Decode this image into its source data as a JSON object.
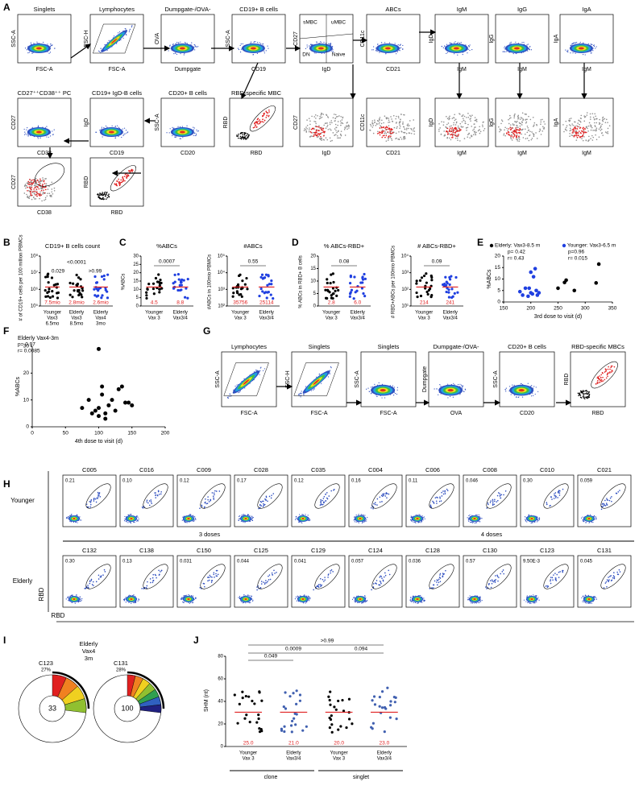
{
  "panel_a": {
    "label": "A",
    "plots": [
      {
        "title": "Singlets",
        "y": "SSC-A",
        "x": "FSC-A"
      },
      {
        "title": "Lymphocytes",
        "y": "FSC-H",
        "x": "FSC-A"
      },
      {
        "title": "Dumpgate-/OVA-",
        "y": "OVA",
        "x": "Dumpgate"
      },
      {
        "title": "CD19+ B cells",
        "y": "SSC-A",
        "x": "CD19"
      },
      {
        "y": "CD27",
        "x": "IgD"
      },
      {
        "title": "ABCs",
        "y": "CD11c",
        "x": "CD21"
      },
      {
        "title": "IgM",
        "y": "IgD",
        "x": "IgM"
      },
      {
        "title": "IgG",
        "y": "IgG",
        "x": "IgM"
      },
      {
        "title": "IgA",
        "y": "IgA",
        "x": "IgM"
      },
      {
        "title": "CD27⁺⁺CD38⁺⁺ PC",
        "y": "CD27",
        "x": "CD38"
      },
      {
        "title": "CD19+ IgD-B cells",
        "y": "IgD",
        "x": "CD19"
      },
      {
        "title": "CD20+ B cells",
        "y": "SSC-A",
        "x": "CD20"
      },
      {
        "title": "RBD-specific MBC",
        "y": "RBD",
        "x": "RBD"
      },
      {
        "y": "CD27",
        "x": "IgD"
      },
      {
        "y": "CD11c",
        "x": "CD21"
      },
      {
        "y": "IgD",
        "x": "IgM"
      },
      {
        "y": "IgG",
        "x": "IgM"
      },
      {
        "y": "IgA",
        "x": "IgM"
      },
      {
        "y": "CD27",
        "x": "CD38"
      },
      {
        "y": "RBD",
        "x": "RBD"
      }
    ],
    "gate_labels": [
      "sMBC",
      "uMBC",
      "DN",
      "Naive"
    ]
  },
  "panel_b": {
    "label": "B",
    "title": "CD19+ B cells count",
    "ylabel": "# of CD19+ cells per 100 million PBMCs",
    "yticks": [
      "10⁵",
      "10⁶",
      "10⁷",
      "10⁸"
    ],
    "pvalues": [
      "<0.0001",
      "0.029",
      ">0.99"
    ],
    "medians": [
      "7.5mio",
      "2.8mio",
      "2.6mio"
    ],
    "categories": [
      [
        "Younger",
        "Vax3",
        "6.5mo"
      ],
      [
        "Elderly",
        "Vax3",
        "8.5mo"
      ],
      [
        "Elderly",
        "Vax4",
        "3mo"
      ]
    ]
  },
  "panel_c": {
    "label": "C",
    "plots": [
      {
        "title": "%ABCs",
        "ylabel": "%ABCs",
        "yticks": [
          "0",
          "5",
          "10",
          "15",
          "20",
          "25",
          "30"
        ],
        "pvalue": "0.0007",
        "medians": [
          "4.5",
          "8.8"
        ]
      },
      {
        "title": "#ABCs",
        "ylabel": "#ABCs in 100mio PBMCs",
        "yticks": [
          "10²",
          "10³",
          "10⁴",
          "10⁵"
        ],
        "pvalue": "0.55",
        "medians": [
          "35756",
          "25114"
        ]
      }
    ],
    "categories": [
      [
        "Younger",
        "Vax 3"
      ],
      [
        "Elderly",
        "Vax3/4"
      ]
    ]
  },
  "panel_d": {
    "label": "D",
    "plots": [
      {
        "title": "% ABCs-RBD+",
        "ylabel": "% ABCs in RBD+ B cells",
        "yticks": [
          "0",
          "5",
          "10",
          "15",
          "20"
        ],
        "pvalue": "0.08",
        "medians": [
          "2.8",
          "6.0"
        ]
      },
      {
        "title": "# ABCs-RBD+",
        "ylabel": "# RBD+ABCs per 100mio PBMCs",
        "yticks": [
          "10¹",
          "10²",
          "10³",
          "10⁴"
        ],
        "pvalue": "0.09",
        "medians": [
          "214",
          "241"
        ]
      }
    ],
    "categories": [
      [
        "Younger",
        "Vax 3"
      ],
      [
        "Elderly",
        "Vax3/4"
      ]
    ]
  },
  "panel_e": {
    "label": "E",
    "ylabel": "%ABCs",
    "xlabel": "3rd dose to visit (d)",
    "xlim": [
      150,
      350
    ],
    "xticks": [
      150,
      200,
      250,
      300,
      350
    ],
    "ylim": [
      0,
      20
    ],
    "yticks": [
      0,
      5,
      10,
      15,
      20
    ],
    "series": [
      {
        "name": "Elderly: Vax3-8.5 m",
        "color": "#000000",
        "stats": [
          "p= 0.42",
          "r= 0.43"
        ],
        "x": [
          250,
          262,
          265,
          280,
          320,
          325
        ],
        "values": [
          6,
          8.5,
          9.5,
          5,
          8.3,
          16.5
        ]
      },
      {
        "name": "Younger: Vax3-6.5 m",
        "color": "#2040e0",
        "stats": [
          "p=0.96",
          "r= 0.015"
        ],
        "x": [
          180,
          185,
          190,
          195,
          197,
          200,
          203,
          205,
          208,
          210,
          212,
          215,
          200
        ],
        "values": [
          4.5,
          3,
          6,
          2.5,
          6,
          4,
          3.5,
          11,
          14.5,
          5,
          3,
          4,
          13
        ]
      }
    ]
  },
  "panel_f": {
    "label": "F",
    "title": "Elderly Vax4-3m",
    "stats": [
      "p= 0.97",
      "r= 0.0085"
    ],
    "ylabel": "%ABCs",
    "xlabel": "4th dose to visit (d)",
    "xlim": [
      0,
      200
    ],
    "xticks": [
      0,
      50,
      100,
      150,
      200
    ],
    "ylim": [
      0,
      30
    ],
    "yticks": [
      0,
      10,
      20,
      30
    ],
    "x": [
      75,
      85,
      90,
      95,
      100,
      100,
      105,
      110,
      115,
      110,
      120,
      125,
      130,
      135,
      140,
      145,
      150,
      100,
      105
    ],
    "values": [
      7,
      10,
      5,
      6,
      29,
      4,
      12,
      5,
      8,
      3,
      10,
      6,
      14,
      15,
      9,
      9,
      8,
      7,
      15
    ]
  },
  "panel_g": {
    "label": "G",
    "plots": [
      {
        "title": "Lymphocytes",
        "y": "SSC-A",
        "x": "FSC-A"
      },
      {
        "title": "Singlets",
        "y": "FSC-H",
        "x": "FSC-A"
      },
      {
        "title": "Singlets",
        "y": "SSC-A",
        "x": "FSC-A"
      },
      {
        "title": "Dumpgate-/OVA-",
        "y": "Dumpgate",
        "x": "OVA"
      },
      {
        "title": "CD20+ B cells",
        "y": "SSC-A",
        "x": "CD20"
      },
      {
        "title": "RBD-specific MBCs",
        "y": "RBD",
        "x": "RBD"
      }
    ]
  },
  "panel_h": {
    "label": "H",
    "rows": [
      "Younger",
      "Elderly"
    ],
    "doses": [
      "3 doses",
      "4 doses"
    ],
    "ylabel": "RBD",
    "xlabel": "RBD",
    "younger": [
      {
        "name": "C005",
        "value": "0.21"
      },
      {
        "name": "C016",
        "value": "0.10"
      },
      {
        "name": "C009",
        "value": "0.12"
      },
      {
        "name": "C028",
        "value": "0.17"
      },
      {
        "name": "C035",
        "value": "0.12"
      },
      {
        "name": "C004",
        "value": "0.16"
      },
      {
        "name": "C006",
        "value": "0.11"
      },
      {
        "name": "C008",
        "value": "0.046"
      },
      {
        "name": "C010",
        "value": "0.30"
      },
      {
        "name": "C021",
        "value": "0.059"
      }
    ],
    "elderly": [
      {
        "name": "C132",
        "value": "0.30"
      },
      {
        "name": "C138",
        "value": "0.13"
      },
      {
        "name": "C150",
        "value": "0.031"
      },
      {
        "name": "C125",
        "value": "0.044"
      },
      {
        "name": "C129",
        "value": "0.041"
      },
      {
        "name": "C124",
        "value": "0.057"
      },
      {
        "name": "C128",
        "value": "0.036"
      },
      {
        "name": "C130",
        "value": "0.57"
      },
      {
        "name": "C123",
        "value": "9.50E-3"
      },
      {
        "name": "C131",
        "value": "0.045"
      }
    ]
  },
  "panel_i": {
    "label": "I",
    "group": [
      "Elderly",
      "Vax4",
      "3m"
    ],
    "pies": [
      {
        "name": "C123",
        "percent": "27%",
        "center": "33"
      },
      {
        "name": "C131",
        "percent": "28%",
        "center": "100"
      }
    ]
  },
  "panel_j": {
    "label": "J",
    "ylabel": "SHM (nt)",
    "yticks": [
      "0",
      "20",
      "40",
      "60",
      "80"
    ],
    "pvalues": [
      "0.049",
      "0.0009",
      ">0.99",
      "0.094"
    ],
    "medians": [
      "25.0",
      "21.0",
      "20.0",
      "23.0"
    ],
    "categories": [
      [
        "Younger",
        "Vax 3"
      ],
      [
        "Elderly",
        "Vax3/4"
      ],
      [
        "Younger",
        "Vax 3"
      ],
      [
        "Elderly",
        "Vax3/4"
      ]
    ],
    "groups": [
      "clone",
      "singlet"
    ]
  }
}
